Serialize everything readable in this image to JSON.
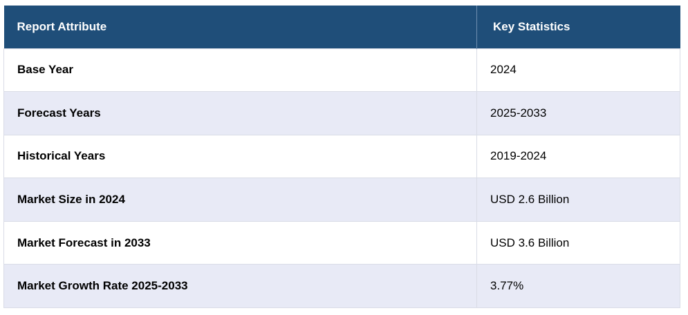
{
  "table": {
    "headers": [
      "Report Attribute",
      "Key Statistics"
    ],
    "rows": [
      {
        "attribute": "Base Year",
        "value": "2024"
      },
      {
        "attribute": "Forecast Years",
        "value": "2025-2033"
      },
      {
        "attribute": "Historical Years",
        "value": "2019-2024"
      },
      {
        "attribute": "Market Size in 2024",
        "value": "USD 2.6 Billion"
      },
      {
        "attribute": "Market Forecast in 2033",
        "value": "USD 3.6 Billion"
      },
      {
        "attribute": "Market Growth Rate 2025-2033",
        "value": "3.77%"
      }
    ]
  },
  "colors": {
    "header_bg": "#1f4e79",
    "header_text": "#ffffff",
    "row_alt_bg": "#e8eaf6",
    "row_bg": "#ffffff"
  }
}
